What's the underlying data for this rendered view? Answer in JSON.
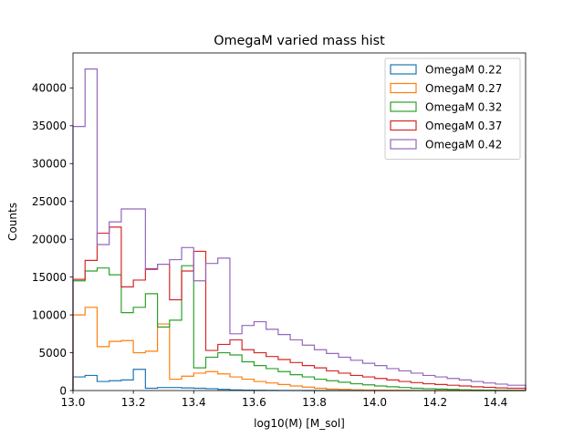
{
  "chart_data": {
    "type": "step-histogram",
    "title": "OmegaM varied mass hist",
    "xlabel": "log10(M) [M_sol]",
    "ylabel": "Counts",
    "xlim": [
      13.0,
      14.5
    ],
    "ylim": [
      0,
      44625
    ],
    "xticks": [
      13.0,
      13.2,
      13.4,
      13.6,
      13.8,
      14.0,
      14.2,
      14.4
    ],
    "xtick_labels": [
      "13.0",
      "13.2",
      "13.4",
      "13.6",
      "13.8",
      "14.0",
      "14.2",
      "14.4"
    ],
    "yticks": [
      0,
      5000,
      10000,
      15000,
      20000,
      25000,
      30000,
      35000,
      40000
    ],
    "ytick_labels": [
      "0",
      "5000",
      "10000",
      "15000",
      "20000",
      "25000",
      "30000",
      "35000",
      "40000"
    ],
    "grid": false,
    "legend_position": "top-right",
    "bin_edges": [
      13.0,
      13.04,
      13.08,
      13.12,
      13.16,
      13.2,
      13.24,
      13.28,
      13.32,
      13.36,
      13.4,
      13.44,
      13.48,
      13.52,
      13.56,
      13.6,
      13.64,
      13.68,
      13.72,
      13.76,
      13.8,
      13.84,
      13.88,
      13.92,
      13.96,
      14.0,
      14.04,
      14.08,
      14.12,
      14.16,
      14.2,
      14.24,
      14.28,
      14.32,
      14.36,
      14.4,
      14.44,
      14.5
    ],
    "series": [
      {
        "name": "OmegaM 0.22",
        "color": "#1f77b4",
        "values": [
          1800,
          2000,
          1200,
          1300,
          1400,
          2800,
          300,
          400,
          400,
          350,
          300,
          250,
          150,
          80,
          50,
          30,
          20,
          10,
          5,
          0,
          0,
          0,
          0,
          0,
          0,
          0,
          0,
          0,
          0,
          0,
          0,
          0,
          0,
          0,
          0,
          0,
          0
        ]
      },
      {
        "name": "OmegaM 0.27",
        "color": "#ff7f0e",
        "values": [
          10000,
          11000,
          5800,
          6500,
          6600,
          5000,
          5200,
          8800,
          1500,
          1900,
          2300,
          2500,
          2200,
          1800,
          1500,
          1200,
          1000,
          800,
          600,
          450,
          300,
          200,
          150,
          100,
          70,
          50,
          30,
          20,
          10,
          5,
          0,
          0,
          0,
          0,
          0,
          0,
          0
        ]
      },
      {
        "name": "OmegaM 0.32",
        "color": "#2ca02c",
        "values": [
          14500,
          15800,
          16200,
          15300,
          10300,
          11000,
          12800,
          8400,
          9300,
          16500,
          3000,
          4400,
          5000,
          4700,
          3800,
          3300,
          2900,
          2500,
          2100,
          1800,
          1500,
          1300,
          1100,
          900,
          750,
          600,
          500,
          400,
          300,
          250,
          200,
          150,
          100,
          70,
          50,
          30,
          20
        ]
      },
      {
        "name": "OmegaM 0.37",
        "color": "#d62728",
        "values": [
          14700,
          17200,
          20800,
          21600,
          13700,
          14600,
          16100,
          16700,
          12000,
          15800,
          18400,
          5300,
          6100,
          6700,
          5400,
          5000,
          4500,
          4100,
          3700,
          3300,
          3000,
          2600,
          2300,
          2000,
          1800,
          1600,
          1400,
          1200,
          1050,
          900,
          800,
          700,
          600,
          500,
          420,
          350,
          300
        ]
      },
      {
        "name": "OmegaM 0.42",
        "color": "#9467bd",
        "values": [
          34900,
          42500,
          19300,
          22300,
          24000,
          24000,
          16000,
          16700,
          17300,
          18900,
          14500,
          16800,
          17500,
          7500,
          8600,
          9100,
          8100,
          7400,
          6700,
          6000,
          5400,
          4900,
          4400,
          4000,
          3600,
          3300,
          2900,
          2600,
          2300,
          2000,
          1800,
          1600,
          1400,
          1200,
          1000,
          850,
          700
        ]
      }
    ]
  }
}
